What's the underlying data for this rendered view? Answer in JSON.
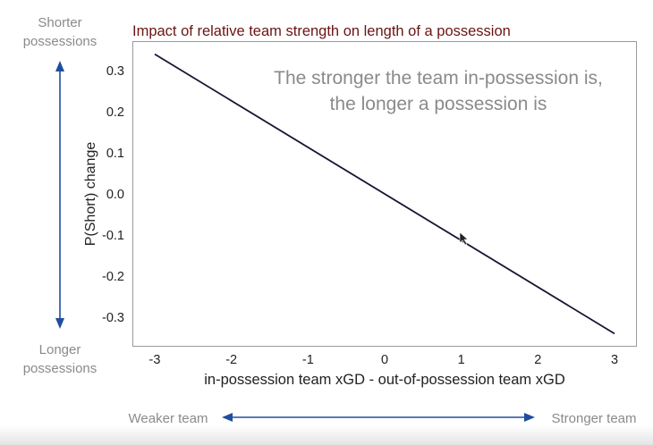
{
  "chart_data": {
    "type": "line",
    "title": "Impact of relative team strength on length of a possession",
    "xlabel": "in-possession team xGD - out-of-possession team xGD",
    "ylabel": "P(Short) change",
    "xlim": [
      -3,
      3
    ],
    "ylim": [
      -0.34,
      0.34
    ],
    "x_ticks": [
      -3,
      -2,
      -1,
      0,
      1,
      2,
      3
    ],
    "x_tick_labels": [
      "-3",
      "-2",
      "-1",
      "0",
      "1",
      "2",
      "3"
    ],
    "y_ticks": [
      0.3,
      0.2,
      0.1,
      0.0,
      -0.1,
      -0.2,
      -0.3
    ],
    "y_tick_labels": [
      "0.3",
      "0.2",
      "0.1",
      "0.0",
      "-0.1",
      "-0.2",
      "-0.3"
    ],
    "series": [
      {
        "x": [
          -3,
          3
        ],
        "y": [
          0.34,
          -0.34
        ]
      }
    ],
    "grid": false,
    "annotation": [
      "The stronger the team in-possession is,",
      "the longer a possession is"
    ]
  },
  "side_labels": {
    "top": [
      "Shorter",
      "possessions"
    ],
    "bottom": [
      "Longer",
      "possessions"
    ]
  },
  "bottom_labels": {
    "left": "Weaker team",
    "right": "Stronger team"
  },
  "colors": {
    "title": "#6b1414",
    "line": "#151535",
    "arrow": "#1f4e9e",
    "annotation": "#8a8a8a",
    "side_text": "#8a8a8a",
    "axis_text": "#222222"
  }
}
